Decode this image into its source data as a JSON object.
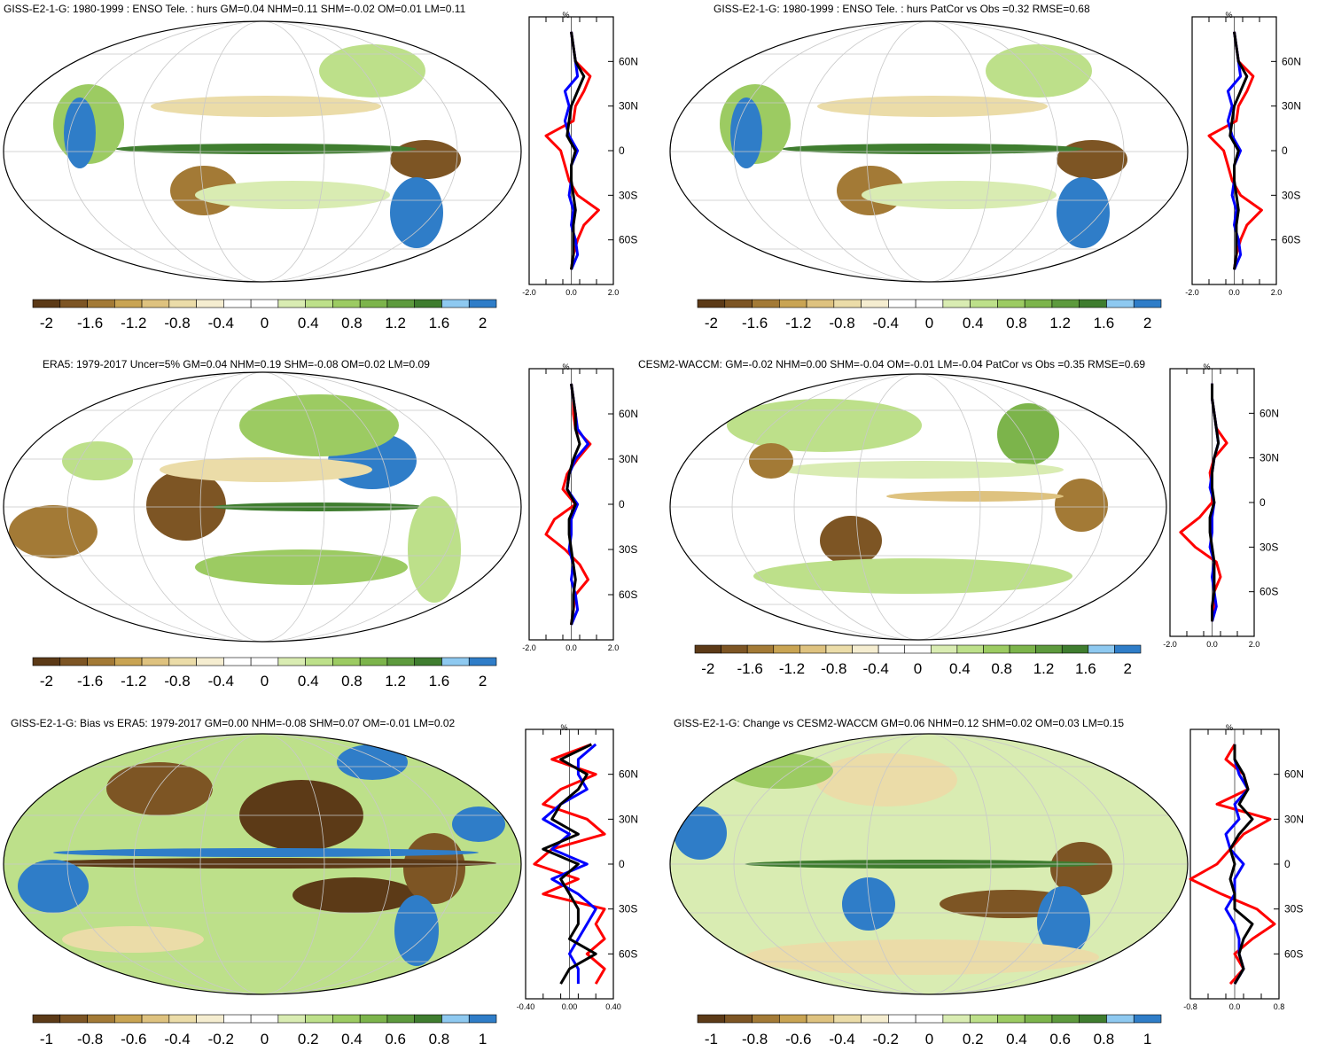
{
  "panels": [
    {
      "title": "GISS-E2-1-G: 1980-1999 : ENSO Tele. : hurs GM=0.04 NHM=0.11 SHM=-0.02 OM=0.01 LM=0.11",
      "colorbar_labels": [
        "-2",
        "-1.6",
        "-1.2",
        "-0.8",
        "-0.4",
        "0",
        "0.4",
        "0.8",
        "1.2",
        "1.6",
        "2"
      ],
      "lat_labels": [
        "60N",
        "30N",
        "0",
        "30S",
        "60S"
      ],
      "profile_unit": "%",
      "profile_ticks": [
        "-2.0",
        "0.0",
        "2.0"
      ]
    },
    {
      "title": "GISS-E2-1-G: 1980-1999 : ENSO Tele. : hurs PatCor vs Obs =0.32 RMSE=0.68",
      "colorbar_labels": [
        "-2",
        "-1.6",
        "-1.2",
        "-0.8",
        "-0.4",
        "0",
        "0.4",
        "0.8",
        "1.2",
        "1.6",
        "2"
      ],
      "lat_labels": [
        "60N",
        "30N",
        "0",
        "30S",
        "60S"
      ],
      "profile_unit": "%",
      "profile_ticks": [
        "-2.0",
        "0.0",
        "2.0"
      ]
    },
    {
      "title": "ERA5: 1979-2017 Uncer=5% GM=0.04 NHM=0.19 SHM=-0.08 OM=0.02 LM=0.09",
      "colorbar_labels": [
        "-2",
        "-1.6",
        "-1.2",
        "-0.8",
        "-0.4",
        "0",
        "0.4",
        "0.8",
        "1.2",
        "1.6",
        "2"
      ],
      "lat_labels": [
        "60N",
        "30N",
        "0",
        "30S",
        "60S"
      ],
      "profile_unit": "%",
      "profile_ticks": [
        "-2.0",
        "0.0",
        "2.0"
      ]
    },
    {
      "title": "CESM2-WACCM: GM=-0.02 NHM=0.00 SHM=-0.04 OM=-0.01 LM=-0.04 PatCor vs Obs =0.35 RMSE=0.69",
      "colorbar_labels": [
        "-2",
        "-1.6",
        "-1.2",
        "-0.8",
        "-0.4",
        "0",
        "0.4",
        "0.8",
        "1.2",
        "1.6",
        "2"
      ],
      "lat_labels": [
        "60N",
        "30N",
        "0",
        "30S",
        "60S"
      ],
      "profile_unit": "%",
      "profile_ticks": [
        "-2.0",
        "0.0",
        "2.0"
      ]
    },
    {
      "title": "GISS-E2-1-G: Bias vs ERA5: 1979-2017 GM=0.00 NHM=-0.08 SHM=0.07 OM=-0.01 LM=0.02",
      "colorbar_labels": [
        "-1",
        "-0.8",
        "-0.6",
        "-0.4",
        "-0.2",
        "0",
        "0.2",
        "0.4",
        "0.6",
        "0.8",
        "1"
      ],
      "lat_labels": [
        "60N",
        "30N",
        "0",
        "30S",
        "60S"
      ],
      "profile_unit": "%",
      "profile_ticks": [
        "-0.40",
        "0.00",
        "0.40"
      ]
    },
    {
      "title": "GISS-E2-1-G: Change vs CESM2-WACCM GM=0.06 NHM=0.12 SHM=0.02 OM=0.03 LM=0.15",
      "colorbar_labels": [
        "-1",
        "-0.8",
        "-0.6",
        "-0.4",
        "-0.2",
        "0",
        "0.2",
        "0.4",
        "0.6",
        "0.8",
        "1"
      ],
      "lat_labels": [
        "60N",
        "30N",
        "0",
        "30S",
        "60S"
      ],
      "profile_unit": "%",
      "profile_ticks": [
        "-0.8",
        "0.0",
        "0.8"
      ]
    }
  ],
  "palette": [
    "#5c3a17",
    "#7d5524",
    "#a37a36",
    "#c9a453",
    "#dec27f",
    "#ebdca8",
    "#f5edd0",
    "#ffffff",
    "#ffffff",
    "#d9ecb2",
    "#bde08a",
    "#9ccb62",
    "#7cb44b",
    "#5d9a3d",
    "#3f7d2f",
    "#8ec9f0",
    "#2f7dc8"
  ],
  "line_colors": {
    "model": "#ff0000",
    "obs": "#0000ff",
    "zonal": "#000000"
  },
  "chart_data": [
    {
      "type": "heatmap",
      "title": "GISS-E2-1-G: 1980-1999 : ENSO Tele. : hurs GM=0.04 NHM=0.11 SHM=-0.02 OM=0.01 LM=0.11",
      "colorbar_range": [
        -2,
        2
      ],
      "profile": {
        "xlim": [
          -2,
          2
        ],
        "x_ticks": [
          "-2.0",
          "0.0",
          "2.0"
        ],
        "y_ticks": [
          "60N",
          "30N",
          "0",
          "30S",
          "60S"
        ],
        "lat": [
          80,
          70,
          60,
          50,
          40,
          30,
          20,
          10,
          0,
          -10,
          -20,
          -30,
          -40,
          -50,
          -60,
          -70,
          -80
        ],
        "series": [
          {
            "color": "red",
            "values": [
              0,
              0.1,
              0.2,
              0.9,
              0.6,
              0.2,
              0.1,
              -1.2,
              -0.5,
              -0.3,
              -0.1,
              0.3,
              1.3,
              0.6,
              0.3,
              0.1,
              0
            ]
          },
          {
            "color": "blue",
            "values": [
              0,
              0.1,
              0.2,
              0.3,
              -0.3,
              -0.1,
              -0.3,
              -0.1,
              0.3,
              0,
              0,
              -0.1,
              0.1,
              0,
              0.2,
              0.3,
              0
            ]
          },
          {
            "color": "black",
            "values": [
              0,
              0.1,
              0.2,
              0.6,
              0.3,
              0,
              -0.1,
              -0.2,
              0.2,
              0,
              0,
              0.1,
              0.2,
              0.1,
              0.1,
              0.1,
              0
            ]
          }
        ]
      }
    },
    {
      "type": "heatmap",
      "title": "GISS-E2-1-G: 1980-1999 : ENSO Tele. : hurs PatCor vs Obs =0.32 RMSE=0.68",
      "colorbar_range": [
        -2,
        2
      ],
      "profile": {
        "xlim": [
          -2,
          2
        ],
        "x_ticks": [
          "-2.0",
          "0.0",
          "2.0"
        ],
        "y_ticks": [
          "60N",
          "30N",
          "0",
          "30S",
          "60S"
        ],
        "lat": [
          80,
          70,
          60,
          50,
          40,
          30,
          20,
          10,
          0,
          -10,
          -20,
          -30,
          -40,
          -50,
          -60,
          -70,
          -80
        ],
        "series": [
          {
            "color": "red",
            "values": [
              0,
              0.1,
              0.2,
              0.9,
              0.6,
              0.2,
              0.1,
              -1.2,
              -0.5,
              -0.3,
              -0.1,
              0.3,
              1.3,
              0.6,
              0.3,
              0.1,
              0
            ]
          },
          {
            "color": "blue",
            "values": [
              0,
              0.1,
              0.2,
              0.3,
              -0.3,
              -0.1,
              -0.3,
              -0.1,
              0.3,
              0,
              0,
              -0.1,
              0.1,
              0,
              0.2,
              0.3,
              0
            ]
          },
          {
            "color": "black",
            "values": [
              0,
              0.1,
              0.2,
              0.6,
              0.3,
              0,
              -0.1,
              -0.2,
              0.2,
              0,
              0,
              0.1,
              0.2,
              0.1,
              0.1,
              0.1,
              0
            ]
          }
        ]
      }
    },
    {
      "type": "heatmap",
      "title": "ERA5: 1979-2017 Uncer=5% GM=0.04 NHM=0.19 SHM=-0.08 OM=0.02 LM=0.09",
      "colorbar_range": [
        -2,
        2
      ],
      "profile": {
        "xlim": [
          -2,
          2
        ],
        "x_ticks": [
          "-2.0",
          "0.0",
          "2.0"
        ],
        "y_ticks": [
          "60N",
          "30N",
          "0",
          "30S",
          "60S"
        ],
        "lat": [
          80,
          70,
          60,
          50,
          40,
          30,
          20,
          10,
          0,
          -10,
          -20,
          -30,
          -40,
          -50,
          -60,
          -70,
          -80
        ],
        "series": [
          {
            "color": "red",
            "values": [
              0,
              0.1,
              0.1,
              0.2,
              0.9,
              0.3,
              -0.2,
              -0.4,
              0.2,
              -0.8,
              -1.2,
              -0.3,
              0.4,
              0.8,
              0.2,
              0.1,
              0
            ]
          },
          {
            "color": "blue",
            "values": [
              0,
              0.1,
              0.2,
              0.3,
              0.8,
              0.2,
              -0.1,
              -0.2,
              0.3,
              0,
              0,
              -0.1,
              0.1,
              0,
              0.2,
              0.3,
              0
            ]
          },
          {
            "color": "black",
            "values": [
              0,
              0.1,
              0.2,
              0.2,
              0.4,
              0.1,
              -0.1,
              -0.2,
              0.2,
              -0.1,
              -0.1,
              0,
              0.1,
              0.2,
              0.1,
              0.1,
              0
            ]
          }
        ]
      }
    },
    {
      "type": "heatmap",
      "title": "CESM2-WACCM: GM=-0.02 NHM=0.00 SHM=-0.04 OM=-0.01 LM=-0.04 PatCor vs Obs =0.35 RMSE=0.69",
      "colorbar_range": [
        -2,
        2
      ],
      "profile": {
        "xlim": [
          -2,
          2
        ],
        "x_ticks": [
          "-2.0",
          "0.0",
          "2.0"
        ],
        "y_ticks": [
          "60N",
          "30N",
          "0",
          "30S",
          "60S"
        ],
        "lat": [
          80,
          70,
          60,
          50,
          40,
          30,
          20,
          10,
          0,
          -10,
          -20,
          -30,
          -40,
          -50,
          -60,
          -70,
          -80
        ],
        "series": [
          {
            "color": "red",
            "values": [
              0,
              0,
              0.1,
              0.2,
              0.7,
              0.1,
              -0.1,
              0,
              0,
              -0.6,
              -1.5,
              -0.8,
              0.2,
              0.4,
              0.1,
              0.1,
              0
            ]
          },
          {
            "color": "blue",
            "values": [
              0,
              0,
              0.1,
              0.2,
              0.3,
              0.1,
              0,
              -0.1,
              0.1,
              0,
              0,
              -0.1,
              0.1,
              0,
              0.1,
              0.2,
              0
            ]
          },
          {
            "color": "black",
            "values": [
              0,
              0,
              0.1,
              0.2,
              0.3,
              0.1,
              0,
              0,
              0.1,
              -0.1,
              -0.1,
              0,
              0.1,
              0.1,
              0.1,
              0,
              0
            ]
          }
        ]
      }
    },
    {
      "type": "heatmap",
      "title": "GISS-E2-1-G: Bias vs ERA5: 1979-2017 GM=0.00 NHM=-0.08 SHM=0.07 OM=-0.01 LM=0.02",
      "colorbar_range": [
        -1,
        1
      ],
      "profile": {
        "xlim": [
          -0.5,
          0.5
        ],
        "x_ticks": [
          "-0.40",
          "0.00",
          "0.40"
        ],
        "y_ticks": [
          "60N",
          "30N",
          "0",
          "30S",
          "60S"
        ],
        "lat": [
          80,
          70,
          60,
          50,
          40,
          30,
          20,
          10,
          0,
          -10,
          -20,
          -30,
          -40,
          -50,
          -60,
          -70,
          -80
        ],
        "series": [
          {
            "color": "red",
            "values": [
              0.25,
              -0.2,
              0.3,
              -0.1,
              -0.3,
              0.2,
              0.4,
              -0.2,
              -0.4,
              0.1,
              -0.3,
              0.4,
              0.3,
              0.4,
              0.2,
              0.4,
              0.3
            ]
          },
          {
            "color": "blue",
            "values": [
              0.3,
              0.1,
              0.1,
              0.2,
              -0.1,
              -0.3,
              0,
              -0.2,
              0.2,
              -0.2,
              0.1,
              0.3,
              0.2,
              0.1,
              0,
              0.1,
              0.1
            ]
          },
          {
            "color": "black",
            "values": [
              0.25,
              -0.1,
              0.2,
              0.1,
              -0.1,
              -0.2,
              0.1,
              -0.3,
              0.1,
              -0.1,
              0,
              0.1,
              0.1,
              0,
              0.3,
              0,
              -0.1
            ]
          }
        ]
      }
    },
    {
      "type": "heatmap",
      "title": "GISS-E2-1-G: Change vs CESM2-WACCM GM=0.06 NHM=0.12 SHM=0.02 OM=0.03 LM=0.15",
      "colorbar_range": [
        -1,
        1
      ],
      "profile": {
        "xlim": [
          -1,
          1
        ],
        "x_ticks": [
          "-0.8",
          "0.0",
          "0.8"
        ],
        "y_ticks": [
          "60N",
          "30N",
          "0",
          "30S",
          "60S"
        ],
        "lat": [
          80,
          70,
          60,
          50,
          40,
          30,
          20,
          10,
          0,
          -10,
          -20,
          -30,
          -40,
          -50,
          -60,
          -70,
          -80
        ],
        "series": [
          {
            "color": "red",
            "values": [
              0,
              -0.2,
              0.2,
              0.3,
              -0.4,
              0.8,
              0.2,
              -0.1,
              -0.4,
              -1,
              -0.3,
              0.5,
              0.9,
              0.4,
              0,
              0.2,
              -0.1
            ]
          },
          {
            "color": "blue",
            "values": [
              0,
              0,
              0.1,
              0.3,
              0,
              0.1,
              -0.2,
              -0.1,
              0.2,
              0,
              0,
              -0.2,
              0,
              0.1,
              0.1,
              0.2,
              0
            ]
          },
          {
            "color": "black",
            "values": [
              0,
              0,
              0.2,
              0.3,
              0.1,
              0.4,
              0.1,
              -0.1,
              0,
              -0.1,
              0,
              0,
              0.4,
              0.2,
              0.1,
              0.2,
              0
            ]
          }
        ]
      }
    }
  ]
}
